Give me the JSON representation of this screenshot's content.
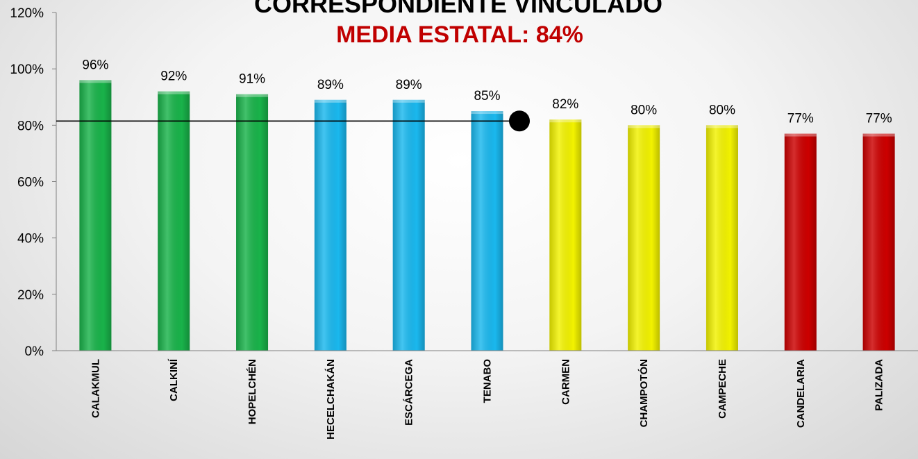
{
  "chart_data": {
    "type": "bar",
    "title": "CORRESPONDIENTE VINCULADO",
    "subtitle": "MEDIA ESTATAL: 84%",
    "subtitle_color": "#c00000",
    "categories": [
      "CALAKMUL",
      "CALKINÍ",
      "HOPELCHÉN",
      "HECELCHAKÁN",
      "ESCÁRCEGA",
      "TENABO",
      "CARMEN",
      "CHAMPOTÓN",
      "CAMPECHE",
      "CANDELARIA",
      "PALIZADA"
    ],
    "values": [
      96,
      92,
      91,
      89,
      89,
      85,
      82,
      80,
      80,
      77,
      77
    ],
    "value_labels": [
      "96%",
      "92%",
      "91%",
      "89%",
      "89%",
      "85%",
      "82%",
      "80%",
      "80%",
      "77%",
      "77%"
    ],
    "bar_colors": [
      "#19b34a",
      "#19b34a",
      "#19b34a",
      "#1ab8ee",
      "#1ab8ee",
      "#1ab8ee",
      "#f2f200",
      "#f2f200",
      "#f2f200",
      "#cc0000",
      "#cc0000"
    ],
    "yticks": [
      "0%",
      "20%",
      "40%",
      "60%",
      "80%",
      "100%",
      "120%"
    ],
    "ylim": [
      0,
      120
    ],
    "reference_line": 81,
    "xlabel": "",
    "ylabel": "",
    "grid": false
  }
}
